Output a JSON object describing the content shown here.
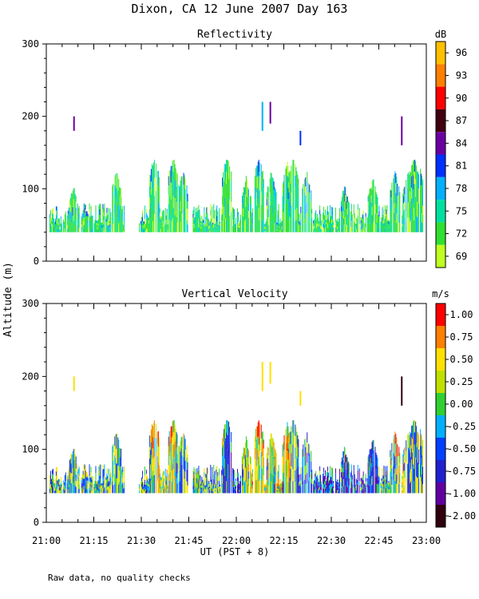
{
  "figure_title": "Dixon, CA 12 June 2007  Day 163",
  "y_axis_label": "Altitude (m)",
  "x_axis_label": "UT  (PST + 8)",
  "footnote": "Raw data, no quality checks",
  "chart_data": [
    {
      "type": "heatmap",
      "title": "Reflectivity",
      "xlabel": "UT  (PST + 8)",
      "ylabel": "Altitude (m)",
      "x_tick_labels": [
        "21:00",
        "21:15",
        "21:30",
        "21:45",
        "22:00",
        "22:15",
        "22:30",
        "22:45",
        "23:00"
      ],
      "x_range_minutes": [
        0,
        120
      ],
      "y_ticks": [
        0,
        100,
        200,
        300
      ],
      "ylim": [
        0,
        300
      ],
      "colorbar": {
        "unit": "dB",
        "labels": [
          "96",
          "93",
          "90",
          "87",
          "84",
          "81",
          "78",
          "75",
          "72",
          "69"
        ],
        "colors": [
          "#ffc000",
          "#ff8000",
          "#ff0000",
          "#400010",
          "#6a00a0",
          "#0030ff",
          "#00b0ff",
          "#00e0a0",
          "#30e030",
          "#c0ff20"
        ]
      },
      "data_description": "Radar echoes mostly between 40 and 100 m altitude across 21:02-22:58 UT, gap near 21:25-21:29; isolated echoes near 180-220 m at ~21:09, ~22:08, ~22:10, ~22:20, ~22:50"
    },
    {
      "type": "heatmap",
      "title": "Vertical Velocity",
      "xlabel": "UT  (PST + 8)",
      "ylabel": "Altitude (m)",
      "x_tick_labels": [
        "21:00",
        "21:15",
        "21:30",
        "21:45",
        "22:00",
        "22:15",
        "22:30",
        "22:45",
        "23:00"
      ],
      "x_range_minutes": [
        0,
        120
      ],
      "y_ticks": [
        0,
        100,
        200,
        300
      ],
      "ylim": [
        0,
        300
      ],
      "colorbar": {
        "unit": "m/s",
        "labels": [
          "1.00",
          "0.75",
          "0.50",
          "0.25",
          "0.00",
          "-0.25",
          "-0.50",
          "-0.75",
          "-1.00",
          "-2.00"
        ],
        "colors": [
          "#ff0000",
          "#ff8000",
          "#ffe000",
          "#c0e000",
          "#30d030",
          "#00b0ff",
          "#0040ff",
          "#2020d0",
          "#6000a0",
          "#300010"
        ]
      },
      "data_description": "Vertical velocity field for the same echoes; strong positive (red) updrafts near 21:35-21:40, 22:05-22:10, 22:15-22:20; widespread negative (blue) velocities 22:20-22:50"
    }
  ]
}
